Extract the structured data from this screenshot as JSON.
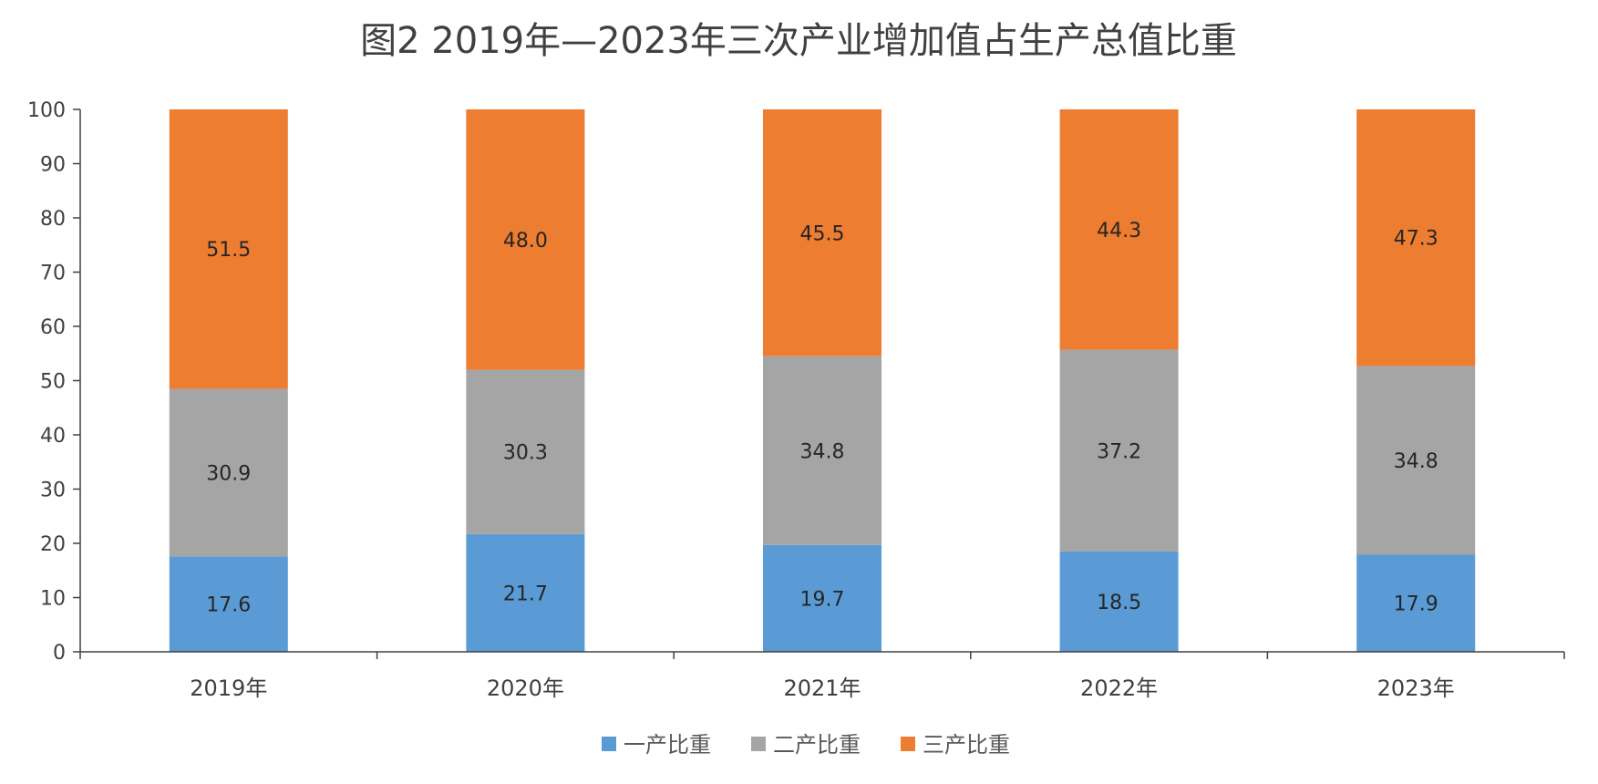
{
  "chart_data": {
    "type": "bar",
    "stacked": true,
    "title": "图2  2019年—2023年三次产业增加值占生产总值比重",
    "xlabel": "",
    "ylabel": "",
    "categories": [
      "2019年",
      "2020年",
      "2021年",
      "2022年",
      "2023年"
    ],
    "ylim": [
      0,
      100
    ],
    "yticks": [
      0,
      10,
      20,
      30,
      40,
      50,
      60,
      70,
      80,
      90,
      100
    ],
    "grid": false,
    "legend": "bottom",
    "series": [
      {
        "name": "一产比重",
        "color": "#5b9bd5",
        "values": [
          17.6,
          21.7,
          19.7,
          18.5,
          17.9
        ],
        "labels": [
          "17.6",
          "21.7",
          "19.7",
          "18.5",
          "17.9"
        ]
      },
      {
        "name": "二产比重",
        "color": "#a5a5a5",
        "values": [
          30.9,
          30.3,
          34.8,
          37.2,
          34.8
        ],
        "labels": [
          "30.9",
          "30.3",
          "34.8",
          "37.2",
          "34.8"
        ]
      },
      {
        "name": "三产比重",
        "color": "#ed7d31",
        "values": [
          51.5,
          48.0,
          45.5,
          44.3,
          47.3
        ],
        "labels": [
          "51.5",
          "48.0",
          "45.5",
          "44.3",
          "47.3"
        ]
      }
    ]
  }
}
